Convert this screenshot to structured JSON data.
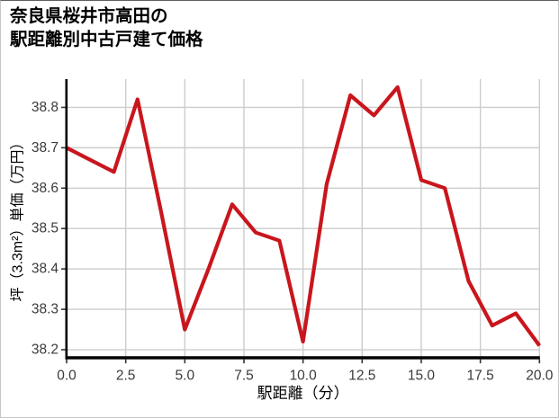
{
  "page": {
    "background": "#ffffff",
    "border_color": "#c6c6c6"
  },
  "chart_data": {
    "type": "line",
    "title_line1": "奈良県桜井市高田の",
    "title_line2": "駅距離別中古戸建て価格",
    "xlabel": "駅距離（分）",
    "ylabel": "坪（3.3m²）単価（万円）",
    "x": [
      0,
      1,
      2,
      3,
      4,
      5,
      6,
      7,
      8,
      9,
      10,
      11,
      12,
      13,
      14,
      15,
      16,
      17,
      18,
      19,
      20
    ],
    "y": [
      38.7,
      38.67,
      38.64,
      38.82,
      38.54,
      38.25,
      38.4,
      38.56,
      38.49,
      38.47,
      38.22,
      38.61,
      38.83,
      38.78,
      38.85,
      38.62,
      38.6,
      38.37,
      38.26,
      38.29,
      38.21
    ],
    "xlim": [
      0,
      20
    ],
    "ylim": [
      38.18,
      38.87
    ],
    "x_ticks": [
      0.0,
      2.5,
      5.0,
      7.5,
      10.0,
      12.5,
      15.0,
      17.5,
      20.0
    ],
    "x_tick_labels": [
      "0.0",
      "2.5",
      "5.0",
      "7.5",
      "10.0",
      "12.5",
      "15.0",
      "17.5",
      "20.0"
    ],
    "y_ticks": [
      38.2,
      38.3,
      38.4,
      38.5,
      38.6,
      38.7,
      38.8
    ],
    "y_tick_labels": [
      "38.2",
      "38.3",
      "38.4",
      "38.5",
      "38.6",
      "38.7",
      "38.8"
    ],
    "grid": true,
    "legend": "none",
    "line_color": "#c9161d",
    "grid_color": "#cccccc",
    "axis_color": "#000000",
    "tick_label_color": "#3a3a3a"
  }
}
